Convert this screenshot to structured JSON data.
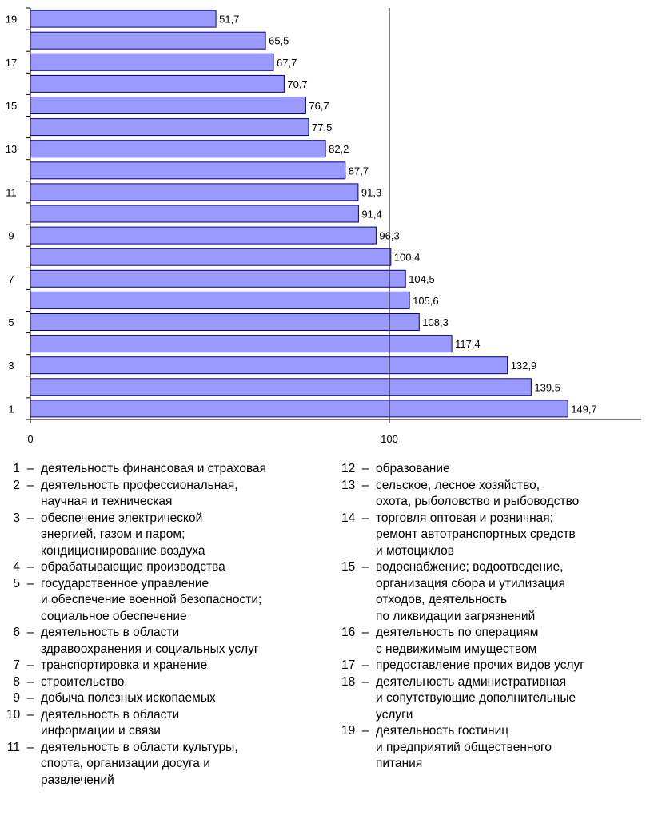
{
  "chart_data": {
    "type": "bar",
    "orientation": "horizontal",
    "categories": [
      "1",
      "2",
      "3",
      "4",
      "5",
      "6",
      "7",
      "8",
      "9",
      "10",
      "11",
      "12",
      "13",
      "14",
      "15",
      "16",
      "17",
      "18",
      "19"
    ],
    "values": [
      149.7,
      139.5,
      132.9,
      117.4,
      108.3,
      105.6,
      104.5,
      100.4,
      96.3,
      91.4,
      91.3,
      87.7,
      82.2,
      77.5,
      76.7,
      70.7,
      67.7,
      65.5,
      51.7
    ],
    "value_labels": [
      "149,7",
      "139,5",
      "132,9",
      "117,4",
      "108,3",
      "105,6",
      "104,5",
      "100,4",
      "96,3",
      "91,4",
      "91,3",
      "87,7",
      "82,2",
      "77,5",
      "76,7",
      "70,7",
      "67,7",
      "65,5",
      "51,7"
    ],
    "y_tick_labels": [
      "1",
      "",
      "3",
      "",
      "5",
      "",
      "7",
      "",
      "9",
      "",
      "11",
      "",
      "13",
      "",
      "15",
      "",
      "17",
      "",
      "19"
    ],
    "x_ticks": [
      "0",
      "100"
    ],
    "x_tick_values": [
      0,
      100
    ],
    "xlim": [
      0,
      170
    ],
    "reference_line": 100,
    "bar_color": "#9999ff",
    "bar_edge_color": "#000080",
    "grid": false,
    "legend": [
      {
        "num": "1",
        "lines": [
          "деятельность финансовая и страховая"
        ]
      },
      {
        "num": "2",
        "lines": [
          "деятельность профессиональная,",
          "научная и техническая"
        ]
      },
      {
        "num": "3",
        "lines": [
          "обеспечение электрической",
          "энергией, газом и паром;",
          "кондиционирование воздуха"
        ]
      },
      {
        "num": "4",
        "lines": [
          "обрабатывающие производства"
        ]
      },
      {
        "num": "5",
        "lines": [
          "государственное управление",
          "и обеспечение военной безопасности;",
          "социальное обеспечение"
        ]
      },
      {
        "num": "6",
        "lines": [
          "деятельность в области",
          "здравоохранения и социальных услуг"
        ]
      },
      {
        "num": "7",
        "lines": [
          "транспортировка и хранение"
        ]
      },
      {
        "num": "8",
        "lines": [
          "строительство"
        ]
      },
      {
        "num": "9",
        "lines": [
          "добыча полезных ископаемых"
        ]
      },
      {
        "num": "10",
        "lines": [
          "деятельность в области",
          "информации и связи"
        ]
      },
      {
        "num": "11",
        "lines": [
          "деятельность в области культуры,",
          "спорта, организации досуга и",
          "развлечений"
        ]
      },
      {
        "num": "12",
        "lines": [
          "образование"
        ]
      },
      {
        "num": "13",
        "lines": [
          "сельское, лесное хозяйство,",
          "охота, рыболовство и рыбоводство"
        ]
      },
      {
        "num": "14",
        "lines": [
          "торговля оптовая и розничная;",
          "ремонт автотранспортных средств",
          "и мотоциклов"
        ]
      },
      {
        "num": "15",
        "lines": [
          "водоснабжение; водоотведение,",
          "организация сбора и утилизация",
          "отходов, деятельность",
          "по ликвидации загрязнений"
        ]
      },
      {
        "num": "16",
        "lines": [
          "деятельность по операциям",
          "с недвижимым имуществом"
        ]
      },
      {
        "num": "17",
        "lines": [
          "предоставление прочих видов услуг"
        ]
      },
      {
        "num": "18",
        "lines": [
          "деятельность административная",
          "и сопутствующие дополнительные",
          "услуги"
        ]
      },
      {
        "num": "19",
        "lines": [
          "деятельность гостиниц",
          "и предприятий общественного",
          "питания"
        ]
      }
    ]
  }
}
